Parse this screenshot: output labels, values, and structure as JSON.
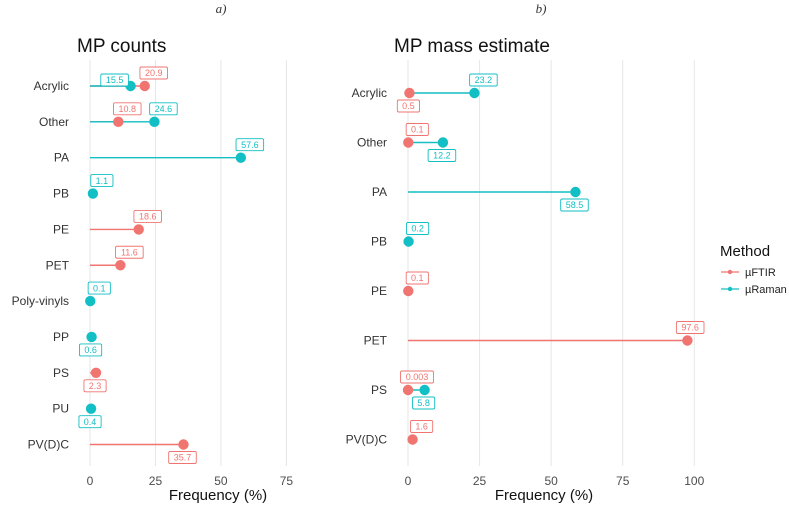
{
  "panel_letters": [
    "a)",
    "b)"
  ],
  "colors": {
    "ftir": "#F07470",
    "raman": "#12BFC4"
  },
  "legend": {
    "title": "Method",
    "entries": [
      {
        "name": "µFTIR",
        "color": "#F07470"
      },
      {
        "name": "µRaman",
        "color": "#12BFC4"
      }
    ]
  },
  "chart_data": [
    {
      "type": "lollipop",
      "title": "MP counts",
      "xlabel": "Frequency (%)",
      "ylabel": "",
      "xlim": [
        -2,
        97
      ],
      "xticks": [
        0,
        25,
        50,
        75
      ],
      "categories": [
        "Acrylic",
        "Other",
        "PA",
        "PB",
        "PE",
        "PET",
        "Poly-vinyls",
        "PP",
        "PS",
        "PU",
        "PV(D)C"
      ],
      "series": [
        {
          "name": "µFTIR",
          "color": "#F07470",
          "points": [
            {
              "category": "Acrylic",
              "value": 20.9,
              "label": "20.9",
              "label_pos": "above"
            },
            {
              "category": "Other",
              "value": 10.8,
              "label": "10.8",
              "label_pos": "above"
            },
            {
              "category": "PE",
              "value": 18.6,
              "label": "18.6",
              "label_pos": "above"
            },
            {
              "category": "PET",
              "value": 11.6,
              "label": "11.6",
              "label_pos": "above"
            },
            {
              "category": "PS",
              "value": 2.3,
              "label": "2.3",
              "label_pos": "below"
            },
            {
              "category": "PV(D)C",
              "value": 35.7,
              "label": "35.7",
              "label_pos": "below"
            }
          ]
        },
        {
          "name": "µRaman",
          "color": "#12BFC4",
          "points": [
            {
              "category": "Acrylic",
              "value": 15.5,
              "label": "15.5",
              "label_pos": "left"
            },
            {
              "category": "Other",
              "value": 24.6,
              "label": "24.6",
              "label_pos": "above"
            },
            {
              "category": "PA",
              "value": 57.6,
              "label": "57.6",
              "label_pos": "above"
            },
            {
              "category": "PB",
              "value": 1.1,
              "label": "1.1",
              "label_pos": "above"
            },
            {
              "category": "Poly-vinyls",
              "value": 0.1,
              "label": "0.1",
              "label_pos": "above"
            },
            {
              "category": "PP",
              "value": 0.6,
              "label": "0.6",
              "label_pos": "below"
            },
            {
              "category": "PU",
              "value": 0.4,
              "label": "0.4",
              "label_pos": "below"
            }
          ]
        }
      ]
    },
    {
      "type": "lollipop",
      "title": "MP mass estimate",
      "xlabel": "Frequency (%)",
      "ylabel": "",
      "xlim": [
        -3,
        102
      ],
      "xticks": [
        0,
        25,
        50,
        75,
        100
      ],
      "categories": [
        "Acrylic",
        "Other",
        "PA",
        "PB",
        "PE",
        "PET",
        "PS",
        "PV(D)C"
      ],
      "series": [
        {
          "name": "µFTIR",
          "color": "#F07470",
          "points": [
            {
              "category": "Acrylic",
              "value": 0.5,
              "label": "0.5",
              "label_pos": "below"
            },
            {
              "category": "Other",
              "value": 0.1,
              "label": "0.1",
              "label_pos": "above"
            },
            {
              "category": "PE",
              "value": 0.1,
              "label": "0.1",
              "label_pos": "above"
            },
            {
              "category": "PET",
              "value": 97.6,
              "label": "97.6",
              "label_pos": "above"
            },
            {
              "category": "PS",
              "value": 0.003,
              "label": "0.003",
              "label_pos": "above"
            },
            {
              "category": "PV(D)C",
              "value": 1.6,
              "label": "1.6",
              "label_pos": "above"
            }
          ]
        },
        {
          "name": "µRaman",
          "color": "#12BFC4",
          "points": [
            {
              "category": "Acrylic",
              "value": 23.2,
              "label": "23.2",
              "label_pos": "above"
            },
            {
              "category": "Other",
              "value": 12.2,
              "label": "12.2",
              "label_pos": "below"
            },
            {
              "category": "PA",
              "value": 58.5,
              "label": "58.5",
              "label_pos": "below"
            },
            {
              "category": "PB",
              "value": 0.2,
              "label": "0.2",
              "label_pos": "above"
            },
            {
              "category": "PS",
              "value": 5.8,
              "label": "5.8",
              "label_pos": "below"
            }
          ]
        }
      ]
    }
  ]
}
